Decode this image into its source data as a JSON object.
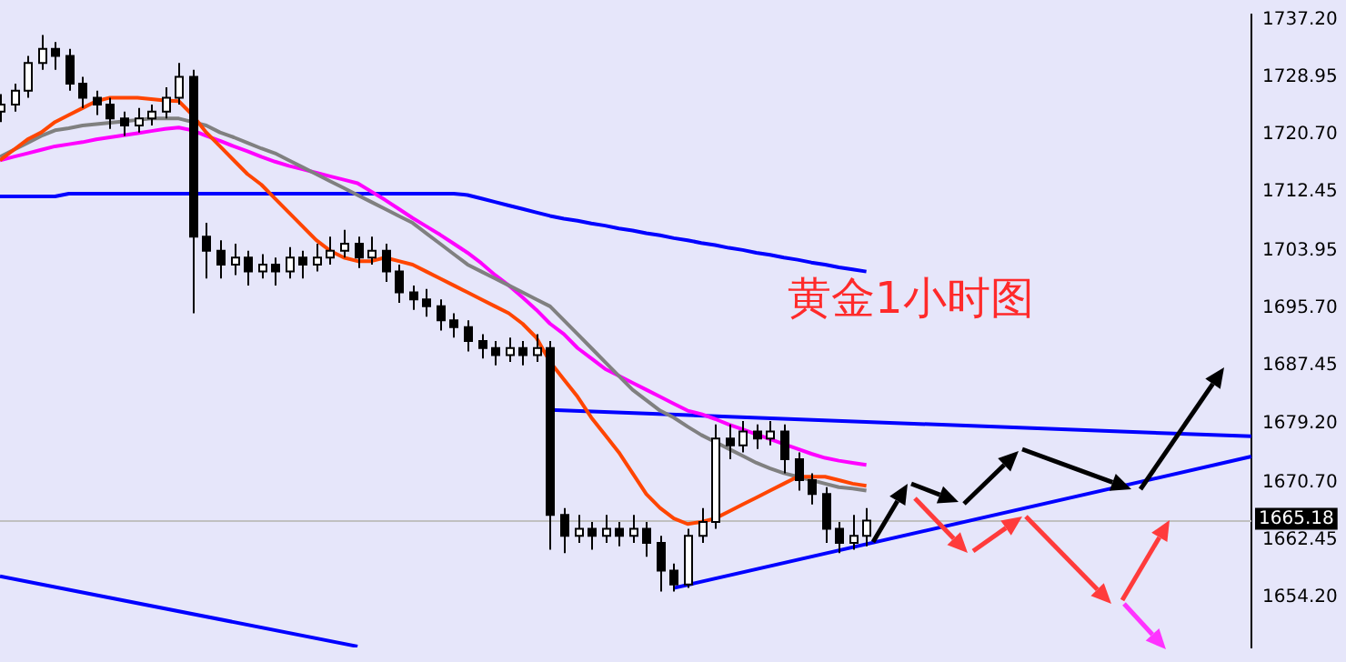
{
  "chart_data": {
    "type": "candlestick",
    "title": "黄金1小时图",
    "categories": [
      null,
      null,
      null,
      null,
      null,
      null,
      null,
      null,
      null,
      null,
      null,
      null,
      null,
      null,
      null,
      null,
      null,
      null,
      null,
      null,
      null,
      null,
      null,
      null,
      null,
      null,
      null,
      null,
      null,
      null,
      null,
      null,
      null,
      null,
      null,
      null,
      null,
      null,
      null,
      null,
      null,
      null,
      null,
      null,
      null,
      null,
      null,
      null,
      null,
      null,
      null,
      null,
      null,
      null,
      null,
      null,
      null,
      null,
      null,
      null,
      null,
      null,
      null,
      null,
      null,
      null,
      null,
      null,
      null,
      null,
      null,
      null,
      null,
      null,
      null,
      null,
      null,
      null,
      null,
      null,
      null,
      null,
      null,
      null,
      null,
      null,
      null,
      null,
      null,
      null,
      null,
      null
    ],
    "ohlc": [
      [
        1724,
        1726.5,
        1722.5,
        1725
      ],
      [
        1725,
        1728,
        1724,
        1727
      ],
      [
        1727,
        1732,
        1726,
        1731
      ],
      [
        1731,
        1735,
        1730,
        1733
      ],
      [
        1733,
        1734,
        1730,
        1732
      ],
      [
        1732,
        1733,
        1727,
        1728
      ],
      [
        1728,
        1729,
        1724.5,
        1726
      ],
      [
        1726,
        1727,
        1723.5,
        1725
      ],
      [
        1725,
        1726,
        1721.5,
        1723
      ],
      [
        1723,
        1724,
        1720.5,
        1722
      ],
      [
        1722,
        1724.5,
        1721,
        1723
      ],
      [
        1723,
        1725,
        1722,
        1724
      ],
      [
        1724,
        1727.5,
        1723,
        1726
      ],
      [
        1726,
        1731,
        1725,
        1729
      ],
      [
        1729,
        1730,
        1695,
        1706
      ],
      [
        1706,
        1708,
        1700,
        1704
      ],
      [
        1704,
        1705.5,
        1700,
        1702
      ],
      [
        1702,
        1705,
        1700.5,
        1703
      ],
      [
        1703,
        1704,
        1699,
        1701
      ],
      [
        1701,
        1703.5,
        1700,
        1702
      ],
      [
        1702,
        1703,
        1699,
        1701
      ],
      [
        1701,
        1704.5,
        1700,
        1703
      ],
      [
        1703,
        1704,
        1700,
        1702
      ],
      [
        1702,
        1705,
        1701,
        1703
      ],
      [
        1703,
        1706,
        1702,
        1704
      ],
      [
        1704,
        1707,
        1703,
        1705
      ],
      [
        1705,
        1706,
        1701.5,
        1703
      ],
      [
        1703,
        1706,
        1702,
        1704
      ],
      [
        1704,
        1705,
        1699.5,
        1701
      ],
      [
        1701,
        1702,
        1696.5,
        1698
      ],
      [
        1698,
        1699,
        1695.5,
        1697
      ],
      [
        1697,
        1698.5,
        1694.5,
        1696
      ],
      [
        1696,
        1697,
        1692.5,
        1694
      ],
      [
        1694,
        1695,
        1691.5,
        1693
      ],
      [
        1693,
        1694,
        1689.5,
        1691
      ],
      [
        1691,
        1692,
        1688.5,
        1690
      ],
      [
        1690,
        1691,
        1687.5,
        1689
      ],
      [
        1689,
        1691.5,
        1688,
        1690
      ],
      [
        1690,
        1691,
        1687.5,
        1689
      ],
      [
        1689,
        1692,
        1688,
        1690
      ],
      [
        1690,
        1691,
        1661,
        1666
      ],
      [
        1666,
        1667,
        1660.5,
        1663
      ],
      [
        1663,
        1666,
        1662,
        1664
      ],
      [
        1664,
        1665,
        1661,
        1663
      ],
      [
        1663,
        1666,
        1662,
        1664
      ],
      [
        1664,
        1665,
        1661.5,
        1663
      ],
      [
        1663,
        1666,
        1662,
        1664
      ],
      [
        1664,
        1665,
        1660,
        1662
      ],
      [
        1662,
        1663,
        1655,
        1658
      ],
      [
        1658,
        1659,
        1655,
        1656
      ],
      [
        1656,
        1664,
        1655.5,
        1663
      ],
      [
        1663,
        1667,
        1662,
        1665
      ],
      [
        1665,
        1679,
        1664,
        1677
      ],
      [
        1677,
        1679,
        1674,
        1676
      ],
      [
        1676,
        1679.5,
        1675,
        1678
      ],
      [
        1678,
        1679,
        1675.5,
        1677
      ],
      [
        1677,
        1679.5,
        1676,
        1678
      ],
      [
        1678,
        1679,
        1672,
        1674
      ],
      [
        1674,
        1675,
        1669.5,
        1671
      ],
      [
        1671,
        1672,
        1667.5,
        1669
      ],
      [
        1669,
        1670,
        1662,
        1664
      ],
      [
        1664,
        1665,
        1660.5,
        1662
      ],
      [
        1662,
        1666,
        1661,
        1663
      ],
      [
        1663,
        1667,
        1661.5,
        1665.18
      ],
      null,
      null,
      null,
      null,
      null,
      null,
      null,
      null,
      null,
      null,
      null,
      null,
      null,
      null,
      null,
      null,
      null,
      null,
      null,
      null,
      null,
      null,
      null,
      null,
      null,
      null,
      null,
      null
    ],
    "series": [
      {
        "type": "line",
        "color": "#ff4500",
        "values": [
          1717,
          1718.5,
          1720,
          1721,
          1722.5,
          1723.5,
          1724.5,
          1725.5,
          1726,
          1726,
          1726,
          1725.8,
          1725.6,
          1725.5,
          1723.5,
          1721,
          1719,
          1717,
          1715,
          1713.5,
          1711.5,
          1709.5,
          1707.5,
          1705.5,
          1704,
          1703,
          1702.5,
          1702.5,
          1703,
          1702.5,
          1702,
          1701,
          1700,
          1699,
          1698,
          1697,
          1696,
          1695,
          1693.5,
          1691.5,
          1688,
          1685.5,
          1683,
          1680,
          1677.5,
          1675,
          1672,
          1669,
          1667,
          1665.5,
          1664.7,
          1665,
          1665.5,
          1666.5,
          1667.5,
          1668.5,
          1669.5,
          1670.5,
          1671.5,
          1671.5,
          1671.5,
          1671,
          1670.5,
          1670.2,
          null,
          null,
          null,
          null,
          null,
          null,
          null,
          null,
          null,
          null,
          null,
          null,
          null,
          null,
          null,
          null,
          null,
          null,
          null,
          null,
          null,
          null,
          null,
          null,
          null,
          null,
          null,
          null
        ]
      },
      {
        "type": "line",
        "color": "#808080",
        "values": [
          1717.5,
          1718.5,
          1719.5,
          1720.5,
          1721.3,
          1721.6,
          1722,
          1722.2,
          1722.4,
          1722.6,
          1722.8,
          1723,
          1723,
          1723,
          1722.5,
          1722,
          1721,
          1720.3,
          1719.5,
          1718.7,
          1718,
          1717,
          1716,
          1715,
          1714,
          1713,
          1712,
          1711,
          1710,
          1709,
          1708,
          1706.5,
          1705,
          1703.5,
          1702,
          1701,
          1700,
          1699,
          1698,
          1697,
          1696,
          1694,
          1692,
          1690,
          1688,
          1686,
          1684,
          1682.5,
          1681,
          1680,
          1678.7,
          1677.5,
          1676.5,
          1675.5,
          1674.5,
          1673.5,
          1672.7,
          1672,
          1671.5,
          1671,
          1670.5,
          1670,
          1669.8,
          1669.5,
          null,
          null,
          null,
          null,
          null,
          null,
          null,
          null,
          null,
          null,
          null,
          null,
          null,
          null,
          null,
          null,
          null,
          null,
          null,
          null,
          null,
          null,
          null,
          null,
          null,
          null,
          null,
          null
        ]
      },
      {
        "type": "line",
        "color": "#ff00ff",
        "values": [
          1717,
          1717.5,
          1718,
          1718.5,
          1719,
          1719.3,
          1719.6,
          1720,
          1720.3,
          1720.6,
          1720.9,
          1721.2,
          1721.5,
          1721.7,
          1721.3,
          1720.5,
          1719.8,
          1719,
          1718.3,
          1717.5,
          1716.8,
          1716.2,
          1715.7,
          1715.2,
          1714.7,
          1714.2,
          1713.7,
          1712.5,
          1711.3,
          1710,
          1708.7,
          1707.5,
          1706.3,
          1705,
          1703.7,
          1702.2,
          1700.5,
          1699,
          1697.3,
          1695.5,
          1693.5,
          1692,
          1690,
          1688.5,
          1687,
          1686,
          1685,
          1684,
          1683,
          1682,
          1681,
          1680.5,
          1679.8,
          1679,
          1678.3,
          1677.6,
          1676.9,
          1676.2,
          1675.5,
          1674.8,
          1674.2,
          1673.8,
          1673.5,
          1673.2,
          null,
          null,
          null,
          null,
          null,
          null,
          null,
          null,
          null,
          null,
          null,
          null,
          null,
          null,
          null,
          null,
          null,
          null,
          null,
          null,
          null,
          null,
          null,
          null,
          null,
          null,
          null,
          null
        ]
      },
      {
        "type": "line",
        "color": "#0000ff",
        "values": [
          1711.8,
          1711.8,
          1711.8,
          1711.8,
          1711.8,
          1712.2,
          1712.2,
          1712.2,
          1712.2,
          1712.2,
          1712.2,
          1712.2,
          1712.2,
          1712.2,
          1712.2,
          1712.2,
          1712.2,
          1712.2,
          1712.2,
          1712.2,
          1712.2,
          1712.2,
          1712.2,
          1712.2,
          1712.2,
          1712.2,
          1712.2,
          1712.2,
          1712.2,
          1712.2,
          1712.2,
          1712.2,
          1712.2,
          1712.2,
          1712,
          1711.5,
          1711,
          1710.5,
          1710,
          1709.5,
          1709,
          1708.6,
          1708.3,
          1707.9,
          1707.6,
          1707.2,
          1706.9,
          1706.5,
          1706.2,
          1705.8,
          1705.5,
          1705.1,
          1704.8,
          1704.4,
          1704.1,
          1703.7,
          1703.4,
          1703,
          1702.7,
          1702.3,
          1702,
          1701.6,
          1701.3,
          1701,
          null,
          null,
          null,
          null,
          null,
          null,
          null,
          null,
          null,
          null,
          null,
          null,
          null,
          null,
          null,
          null,
          null,
          null,
          null,
          null,
          null,
          null,
          null,
          null,
          null,
          null,
          null,
          null
        ]
      },
      {
        "type": "line",
        "color": "#0000ff",
        "values": [
          null,
          null,
          null,
          null,
          null,
          null,
          null,
          null,
          null,
          null,
          null,
          null,
          null,
          null,
          null,
          null,
          null,
          null,
          null,
          null,
          null,
          null,
          null,
          null,
          null,
          null,
          null,
          null,
          null,
          null,
          null,
          null,
          null,
          null,
          null,
          null,
          null,
          null,
          null,
          null,
          1681.1,
          null,
          null,
          null,
          null,
          null,
          null,
          null,
          null,
          null,
          null,
          null,
          null,
          null,
          null,
          null,
          null,
          null,
          null,
          null,
          null,
          null,
          null,
          null,
          null,
          null,
          null,
          null,
          null,
          null,
          null,
          null,
          null,
          null,
          null,
          null,
          null,
          null,
          null,
          null,
          null,
          null,
          null,
          null,
          null,
          null,
          null,
          null,
          null,
          null,
          null,
          1677.3
        ]
      },
      {
        "type": "line",
        "color": "#0000ff",
        "values": [
          null,
          null,
          null,
          null,
          null,
          null,
          null,
          null,
          null,
          null,
          null,
          null,
          null,
          null,
          null,
          null,
          null,
          null,
          null,
          null,
          null,
          null,
          null,
          null,
          null,
          null,
          null,
          null,
          null,
          null,
          null,
          null,
          null,
          null,
          null,
          null,
          null,
          null,
          null,
          null,
          null,
          null,
          null,
          null,
          null,
          null,
          null,
          null,
          null,
          1655.5,
          null,
          null,
          null,
          null,
          null,
          null,
          null,
          null,
          null,
          null,
          null,
          null,
          null,
          null,
          null,
          null,
          null,
          null,
          null,
          null,
          null,
          null,
          null,
          null,
          null,
          null,
          null,
          null,
          null,
          null,
          null,
          null,
          null,
          null,
          null,
          null,
          null,
          null,
          null,
          null,
          null,
          1674.4
        ]
      },
      {
        "type": "line",
        "color": "#0000ff",
        "values": [
          1657.2,
          null,
          null,
          null,
          null,
          null,
          null,
          null,
          null,
          null,
          null,
          null,
          null,
          null,
          null,
          null,
          null,
          null,
          null,
          null,
          null,
          null,
          null,
          null,
          null,
          null,
          1647.1,
          null,
          null,
          null,
          null,
          null,
          null,
          null,
          null,
          null,
          null,
          null,
          null,
          null,
          null,
          null,
          null,
          null,
          null,
          null,
          null,
          null,
          null,
          null,
          null,
          null,
          null,
          null,
          null,
          null,
          null,
          null,
          null,
          null,
          null,
          null,
          null,
          null,
          null,
          null,
          null,
          null,
          null,
          null,
          null,
          null,
          null,
          null,
          null,
          null,
          null,
          null,
          null,
          null,
          null,
          null,
          null,
          null,
          null,
          null,
          null,
          null,
          null,
          null,
          null,
          null
        ]
      }
    ],
    "ylim": [
      1646.95,
      1737.95
    ],
    "yticks": [
      {
        "value": 1737.2,
        "label": "1737.20"
      },
      {
        "value": 1728.95,
        "label": "1728.95"
      },
      {
        "value": 1720.7,
        "label": "1720.70"
      },
      {
        "value": 1712.45,
        "label": "1712.45"
      },
      {
        "value": 1703.95,
        "label": "1703.95"
      },
      {
        "value": 1695.7,
        "label": "1695.70"
      },
      {
        "value": 1687.45,
        "label": "1687.45"
      },
      {
        "value": 1679.2,
        "label": "1679.20"
      },
      {
        "value": 1670.7,
        "label": "1670.70"
      },
      {
        "value": 1662.45,
        "label": "1662.45"
      },
      {
        "value": 1654.2,
        "label": "1654.20"
      }
    ],
    "ref_lines": [
      {
        "axis": "y",
        "value": 1665.18,
        "label": "1665.18",
        "color": "#c0c0c0"
      }
    ],
    "tick_labels": "y"
  }
}
